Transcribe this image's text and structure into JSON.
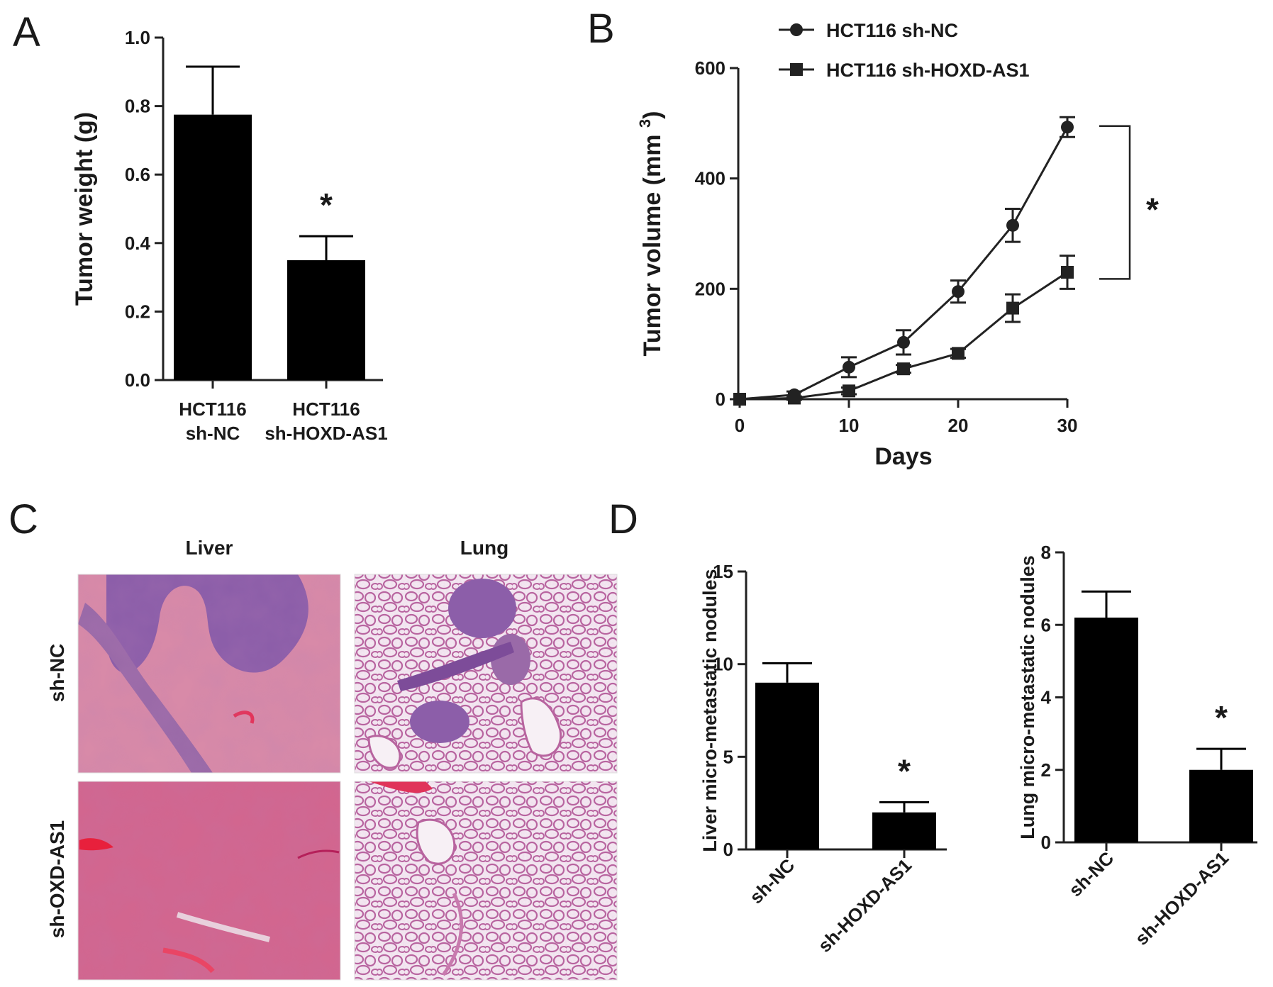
{
  "panels": {
    "a": "A",
    "b": "B",
    "c": "C",
    "d": "D"
  },
  "chart_data": [
    {
      "id": "A",
      "type": "bar",
      "categories": [
        [
          "HCT116",
          "sh-NC"
        ],
        [
          "HCT116",
          "sh-HOXD-AS1"
        ]
      ],
      "values": [
        0.775,
        0.35
      ],
      "errors": [
        0.14,
        0.07
      ],
      "ylabel": "Tumor weight (g)",
      "ylim": [
        0,
        1.0
      ],
      "yticks": [
        "0.0",
        "0.2",
        "0.4",
        "0.6",
        "0.8",
        "1.0"
      ],
      "annotations": [
        "",
        "*"
      ],
      "bar_color": "#000000"
    },
    {
      "id": "B",
      "type": "line",
      "x": [
        0,
        5,
        10,
        15,
        20,
        25,
        30
      ],
      "series": [
        {
          "name": "HCT116 sh-NC",
          "marker": "circle",
          "values": [
            0,
            8,
            58,
            103,
            195,
            315,
            493
          ],
          "errors": [
            0,
            6,
            18,
            22,
            20,
            30,
            18
          ]
        },
        {
          "name": "HCT116 sh-HOXD-AS1",
          "marker": "square",
          "values": [
            0,
            2,
            15,
            55,
            83,
            165,
            230
          ],
          "errors": [
            0,
            3,
            6,
            7,
            8,
            25,
            30
          ]
        }
      ],
      "xlabel": "Days",
      "ylabel_main": "Tumor volume (mm",
      "ylabel_sup": "3",
      "ylabel_close": ")",
      "xlim": [
        0,
        30
      ],
      "ylim": [
        0,
        600
      ],
      "xticks": [
        "0",
        "10",
        "20",
        "30"
      ],
      "yticks": [
        "0",
        "200",
        "400",
        "600"
      ],
      "significance": "*",
      "legend_position": "top"
    },
    {
      "id": "D-liver",
      "type": "bar",
      "categories": [
        "sh-NC",
        "sh-HOXD-AS1"
      ],
      "values": [
        9.0,
        2.0
      ],
      "errors": [
        1.05,
        0.55
      ],
      "ylabel": "Liver micro-metastatic nodules",
      "ylim": [
        0,
        15
      ],
      "yticks": [
        "0",
        "5",
        "10",
        "15"
      ],
      "annotations": [
        "",
        "*"
      ],
      "bar_color": "#000000"
    },
    {
      "id": "D-lung",
      "type": "bar",
      "categories": [
        "sh-NC",
        "sh-HOXD-AS1"
      ],
      "values": [
        6.2,
        2.0
      ],
      "errors": [
        0.72,
        0.58
      ],
      "ylabel": "Lung micro-metastatic nodules",
      "ylim": [
        0,
        8
      ],
      "yticks": [
        "0",
        "2",
        "4",
        "6",
        "8"
      ],
      "annotations": [
        "",
        "*"
      ],
      "bar_color": "#000000"
    }
  ],
  "histology": {
    "columns": [
      "Liver",
      "Lung"
    ],
    "rows": [
      "sh-NC",
      "sh-OXD-AS1"
    ],
    "colors": {
      "liver_pink": "#d2668f",
      "liver_dark": "#c2538a",
      "tumor_purple": "#8c5ea9",
      "lung_bg": "#f2e6f0",
      "lung_wall": "#b8649f"
    }
  }
}
